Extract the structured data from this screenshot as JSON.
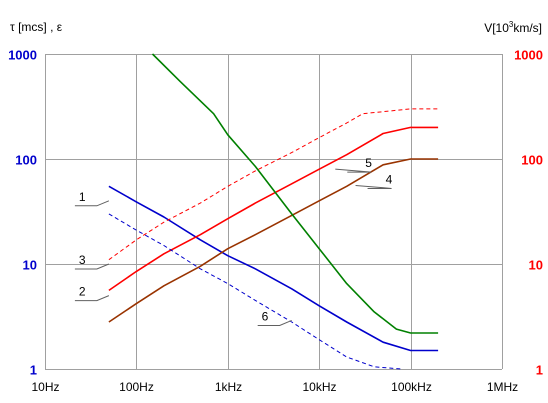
{
  "chart_data": {
    "type": "line",
    "left_axis_label": "τ [mcs] , ε",
    "right_axis_label_parts": [
      "V[10",
      "3",
      "km/s]"
    ],
    "x_scale": "log",
    "y_scale": "log",
    "xlim": [
      10,
      1000000
    ],
    "ylim": [
      1,
      1000
    ],
    "x_ticks": [
      {
        "value": 10,
        "label": "10Hz"
      },
      {
        "value": 100,
        "label": "100Hz"
      },
      {
        "value": 1000,
        "label": "1kHz"
      },
      {
        "value": 10000,
        "label": "10kHz"
      },
      {
        "value": 100000,
        "label": "100kHz"
      },
      {
        "value": 1000000,
        "label": "1MHz"
      }
    ],
    "y_ticks_left": [
      {
        "value": 1,
        "label": "1"
      },
      {
        "value": 10,
        "label": "10"
      },
      {
        "value": 100,
        "label": "100"
      },
      {
        "value": 1000,
        "label": "1000"
      }
    ],
    "y_ticks_right": [
      {
        "value": 1,
        "label": "1"
      },
      {
        "value": 10,
        "label": "10"
      },
      {
        "value": 100,
        "label": "100"
      },
      {
        "value": 1000,
        "label": "1000"
      }
    ],
    "grid": true,
    "colors": {
      "left_axis_text": "#0000cc",
      "right_axis_text": "#ff0000",
      "grid": "#a0a0a0"
    },
    "series": [
      {
        "label": "1",
        "color": "#0000cc",
        "dashed": false,
        "points": [
          [
            50,
            55
          ],
          [
            100,
            39
          ],
          [
            200,
            28
          ],
          [
            500,
            17
          ],
          [
            1000,
            12
          ],
          [
            2000,
            9
          ],
          [
            5000,
            5.8
          ],
          [
            10000,
            4
          ],
          [
            20000,
            2.8
          ],
          [
            50000,
            1.8
          ],
          [
            100000,
            1.5
          ],
          [
            200000,
            1.5
          ]
        ]
      },
      {
        "label": "2",
        "color": "#ff0000",
        "dashed": false,
        "points": [
          [
            50,
            5.6
          ],
          [
            100,
            8.5
          ],
          [
            200,
            12.5
          ],
          [
            500,
            19
          ],
          [
            1000,
            27
          ],
          [
            2000,
            38
          ],
          [
            5000,
            58
          ],
          [
            10000,
            80
          ],
          [
            20000,
            110
          ],
          [
            50000,
            175
          ],
          [
            100000,
            200
          ],
          [
            200000,
            200
          ]
        ]
      },
      {
        "label": "3",
        "color": "#ff0000",
        "dashed": true,
        "points": [
          [
            50,
            11
          ],
          [
            100,
            17
          ],
          [
            200,
            25
          ],
          [
            500,
            38
          ],
          [
            1000,
            55
          ],
          [
            2000,
            77
          ],
          [
            5000,
            115
          ],
          [
            10000,
            160
          ],
          [
            20000,
            220
          ],
          [
            30000,
            270
          ],
          [
            100000,
            300
          ],
          [
            200000,
            300
          ]
        ]
      },
      {
        "label": "4",
        "color": "#993300",
        "dashed": false,
        "points": [
          [
            50,
            2.8
          ],
          [
            100,
            4.2
          ],
          [
            200,
            6.2
          ],
          [
            500,
            9.5
          ],
          [
            1000,
            14
          ],
          [
            2000,
            19
          ],
          [
            5000,
            29
          ],
          [
            10000,
            40
          ],
          [
            20000,
            55
          ],
          [
            50000,
            88
          ],
          [
            100000,
            100
          ],
          [
            200000,
            100
          ]
        ]
      },
      {
        "label": "5",
        "color": "#008000",
        "dashed": false,
        "points": [
          [
            150,
            1000
          ],
          [
            300,
            550
          ],
          [
            700,
            270
          ],
          [
            1000,
            170
          ],
          [
            2000,
            85
          ],
          [
            5000,
            30
          ],
          [
            10000,
            14
          ],
          [
            20000,
            6.5
          ],
          [
            40000,
            3.5
          ],
          [
            70000,
            2.4
          ],
          [
            100000,
            2.2
          ],
          [
            200000,
            2.2
          ]
        ]
      },
      {
        "label": "6",
        "color": "#0000cc",
        "dashed": true,
        "points": [
          [
            50,
            30
          ],
          [
            100,
            21
          ],
          [
            200,
            15
          ],
          [
            500,
            9
          ],
          [
            1000,
            6.5
          ],
          [
            2000,
            4.5
          ],
          [
            5000,
            2.8
          ],
          [
            10000,
            1.9
          ],
          [
            20000,
            1.3
          ],
          [
            40000,
            1.05
          ],
          [
            80000,
            1.0
          ]
        ]
      }
    ],
    "annotations": [
      {
        "text": "1",
        "target": [
          50,
          40
        ],
        "label_side": "left"
      },
      {
        "text": "2",
        "target": [
          50,
          5.0
        ],
        "label_side": "left"
      },
      {
        "text": "3",
        "target": [
          50,
          10
        ],
        "label_side": "left"
      },
      {
        "text": "4",
        "target": [
          25000,
          56
        ],
        "label_side": "right"
      },
      {
        "text": "5",
        "target": [
          15000,
          80
        ],
        "label_side": "right"
      },
      {
        "text": "6",
        "target": [
          5000,
          2.9
        ],
        "label_side": "left"
      }
    ]
  }
}
